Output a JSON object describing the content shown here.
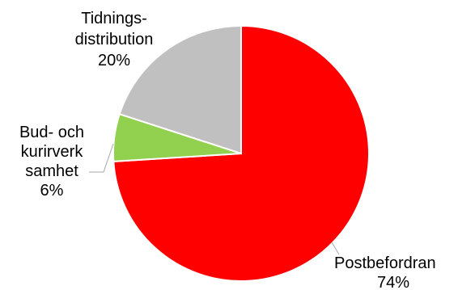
{
  "chart_data": {
    "type": "pie",
    "title": "",
    "start_angle_deg": 0,
    "direction": "clockwise",
    "slices": [
      {
        "name": "Postbefordran",
        "label_lines": [
          "Postbefordran"
        ],
        "value": 74,
        "value_label": "74%",
        "color": "#ff0000"
      },
      {
        "name": "Bud- och kurirverksamhet",
        "label_lines": [
          "Bud- och",
          "kurirverk",
          "samhet"
        ],
        "value": 6,
        "value_label": "6%",
        "color": "#92d050"
      },
      {
        "name": "Tidningsdistribution",
        "label_lines": [
          "Tidnings-",
          "distribution"
        ],
        "value": 20,
        "value_label": "20%",
        "color": "#c0c0c0"
      }
    ],
    "legend": "none",
    "leader_lines": true
  }
}
